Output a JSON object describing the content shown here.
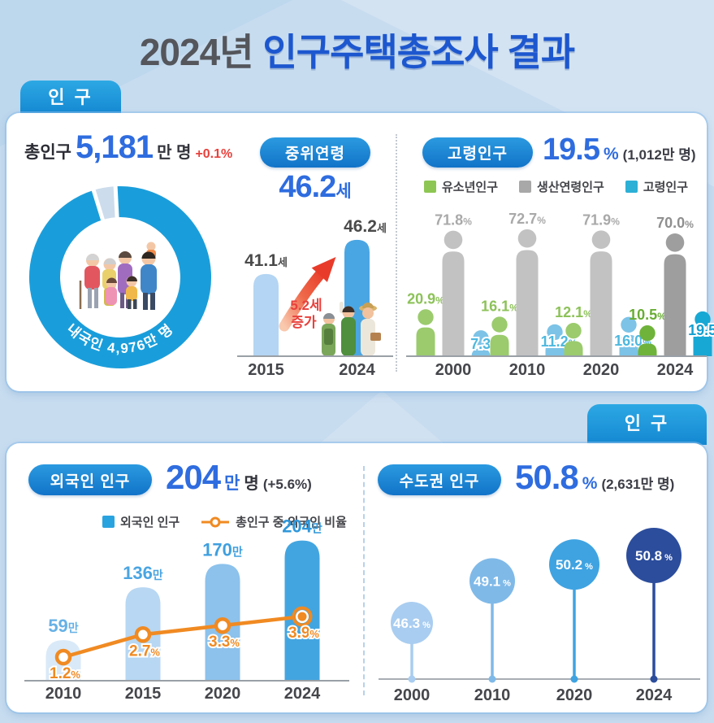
{
  "title": {
    "prefix": "2024년",
    "main": "인구주택총조사 결과"
  },
  "tabs": {
    "top": "인 구",
    "bottom": "인 구"
  },
  "panel1": {
    "total": {
      "label": "총인구",
      "value": "5,181",
      "unit": "만 명",
      "change": "+0.1%"
    },
    "median": {
      "badge": "중위연령",
      "value": "46.2",
      "unit": "세"
    },
    "elderly": {
      "badge": "고령인구",
      "value": "19.5",
      "unit": "%",
      "note": "(1,012만 명)",
      "legend": [
        {
          "label": "유소년인구",
          "color": "#8dc653"
        },
        {
          "label": "생산연령인구",
          "color": "#a8a8a8"
        },
        {
          "label": "고령인구",
          "color": "#2cb0d6"
        }
      ]
    }
  },
  "panel2": {
    "foreign": {
      "badge": "외국인 인구",
      "value": "204",
      "value_unit": "만",
      "unit": "명",
      "change": "(+5.6%)",
      "legend_bar": "외국인 인구",
      "legend_bar_color": "#29a3e0",
      "legend_line": "총인구 중 외국인 비율",
      "legend_line_color": "#f08a22"
    },
    "capital": {
      "badge": "수도권 인구",
      "value": "50.8",
      "unit": "%",
      "note": "(2,631만 명)"
    }
  },
  "chart_data": [
    {
      "id": "domestic-share",
      "type": "pie",
      "caption": "내국인 4,976만 명",
      "slices": [
        {
          "label": "내국인",
          "value": 96.1,
          "color": "#1a9edb"
        },
        {
          "label": "외국인",
          "value": 3.9,
          "color": "#ccdcec"
        }
      ]
    },
    {
      "id": "median-age",
      "type": "bar",
      "title": "중위연령",
      "categories": [
        "2015",
        "2024"
      ],
      "values": [
        41.1,
        46.2
      ],
      "unit": "세",
      "bar_colors": [
        "#b4d5f3",
        "#4aa6e3"
      ],
      "annotation": "5.2세 증가",
      "annotation_color": "#e8413c"
    },
    {
      "id": "age-structure",
      "type": "bar",
      "unit": "%",
      "categories": [
        "2000",
        "2010",
        "2020",
        "2024"
      ],
      "highlight_category": "2024",
      "series": [
        {
          "name": "유소년인구",
          "values": [
            20.9,
            16.1,
            12.1,
            10.5
          ],
          "color": "#9bcb6d",
          "highlight_color": "#6fb33a",
          "label_color": "#8cc258",
          "highlight_label_color": "#68ad33"
        },
        {
          "name": "생산연령인구",
          "values": [
            71.8,
            72.7,
            71.9,
            70.0
          ],
          "color": "#c2c2c2",
          "highlight_color": "#9e9e9e",
          "label_color": "#a9a9a9",
          "highlight_label_color": "#8f8f8f"
        },
        {
          "name": "고령인구",
          "values": [
            7.3,
            11.2,
            16.0,
            19.5
          ],
          "color": "#7cc3e7",
          "highlight_color": "#17a8d4",
          "label_color": "#4fb8de",
          "highlight_label_color": "#149fd0"
        }
      ]
    },
    {
      "id": "foreigner-trend",
      "type": "bar+line",
      "categories": [
        "2010",
        "2015",
        "2020",
        "2024"
      ],
      "bars": {
        "name": "외국인 인구",
        "values": [
          59,
          136,
          170,
          204
        ],
        "unit": "만",
        "colors": [
          "#d9e9f8",
          "#b7d7f3",
          "#8cc2ec",
          "#43a5e0"
        ],
        "label_colors": [
          "#66b1e6",
          "#4aa5e2",
          "#3f9fdf",
          "#2f97da"
        ]
      },
      "line": {
        "name": "총인구 중 외국인 비율",
        "values": [
          1.2,
          2.7,
          3.3,
          3.9
        ],
        "unit": "%",
        "color": "#f08a22"
      }
    },
    {
      "id": "capital-share",
      "type": "lollipop",
      "unit": "%",
      "categories": [
        "2000",
        "2010",
        "2020",
        "2024"
      ],
      "values": [
        46.3,
        49.1,
        50.2,
        50.8
      ],
      "colors": [
        "#a9cdf0",
        "#7fb9e8",
        "#3fa3e1",
        "#2c4d9c"
      ]
    }
  ]
}
